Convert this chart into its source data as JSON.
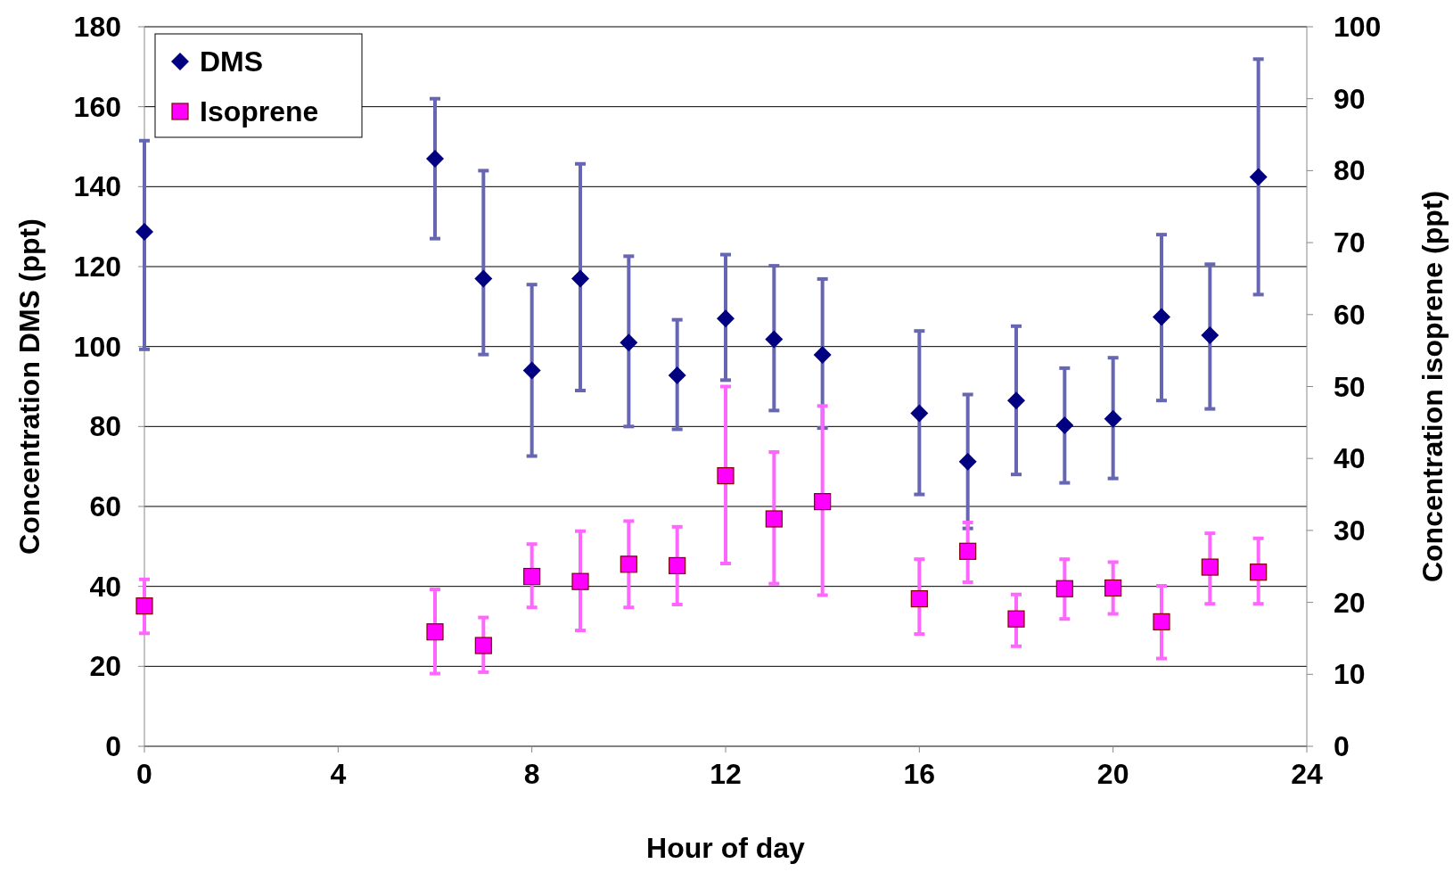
{
  "chart_data": {
    "type": "scatter",
    "xlabel": "Hour of day",
    "ylabel": "Concentration DMS (ppt)",
    "y2label": "Concentration isoprene (ppt)",
    "xlim": [
      0,
      24
    ],
    "xticks": [
      0,
      4,
      8,
      12,
      16,
      20,
      24
    ],
    "ylim": [
      0,
      180
    ],
    "yticks": [
      0,
      20,
      40,
      60,
      80,
      100,
      120,
      140,
      160,
      180
    ],
    "y2lim": [
      0,
      100
    ],
    "y2ticks": [
      0,
      10,
      20,
      30,
      40,
      50,
      60,
      70,
      80,
      90,
      100
    ],
    "grid": "y",
    "legend": "top left",
    "series": [
      {
        "name": "DMS",
        "color": "#000080",
        "marker": "diamond",
        "x": [
          0,
          6,
          7,
          8,
          9,
          10,
          11,
          12,
          13,
          14,
          16,
          17,
          18,
          19,
          20,
          21,
          22,
          23
        ],
        "values": [
          128.7,
          147,
          117,
          94,
          117,
          101,
          92.8,
          107,
          101.8,
          97.9,
          83.3,
          71.2,
          86.5,
          80.3,
          81.9,
          107.4,
          102.8,
          142.4
        ],
        "errors": [
          [
            99.3,
            151.5
          ],
          [
            127,
            162
          ],
          [
            98,
            144
          ],
          [
            72.6,
            115.5
          ],
          [
            89,
            145.7
          ],
          [
            80,
            122.6
          ],
          [
            79.3,
            106.7
          ],
          [
            91.6,
            123
          ],
          [
            84,
            120.2
          ],
          [
            79.6,
            116.9
          ],
          [
            63,
            103.9
          ],
          [
            54.5,
            88
          ],
          [
            68,
            105.1
          ],
          [
            65.9,
            94.6
          ],
          [
            67,
            97.2
          ],
          [
            86.5,
            128
          ],
          [
            84.4,
            120.6
          ],
          [
            113,
            171.9
          ]
        ]
      },
      {
        "name": "Isoprene",
        "color": "#ff00ff",
        "marker": "square",
        "axis": "y2",
        "x": [
          0,
          6,
          7,
          8,
          9,
          10,
          11,
          12,
          13,
          14,
          16,
          17,
          18,
          19,
          20,
          21,
          22,
          23
        ],
        "values": [
          19.5,
          15.9,
          14,
          23.6,
          22.9,
          25.3,
          25.1,
          37.6,
          31.6,
          34,
          20.5,
          27.1,
          17.7,
          21.9,
          22,
          17.3,
          24.9,
          24.2
        ],
        "errors": [
          [
            15.7,
            23.2
          ],
          [
            10.1,
            21.8
          ],
          [
            10.3,
            17.9
          ],
          [
            19.3,
            28.1
          ],
          [
            16.1,
            29.9
          ],
          [
            19.3,
            31.3
          ],
          [
            19.7,
            30.5
          ],
          [
            25.4,
            50
          ],
          [
            22.6,
            40.9
          ],
          [
            21,
            47.3
          ],
          [
            15.6,
            26
          ],
          [
            22.8,
            31.1
          ],
          [
            13.9,
            21.1
          ],
          [
            17.7,
            26
          ],
          [
            18.4,
            25.6
          ],
          [
            12.2,
            22.3
          ],
          [
            19.8,
            29.6
          ],
          [
            19.8,
            28.9
          ]
        ]
      }
    ]
  }
}
